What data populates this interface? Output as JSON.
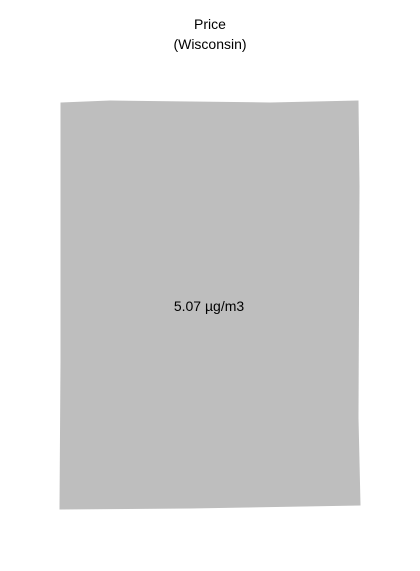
{
  "title": {
    "line1": "Price",
    "line2": "(Wisconsin)"
  },
  "map": {
    "region_name": "Wisconsin",
    "value_label": "5.07 µg/m3",
    "value": 5.07,
    "unit": "µg/m3",
    "fill_color": "#bebebe"
  }
}
